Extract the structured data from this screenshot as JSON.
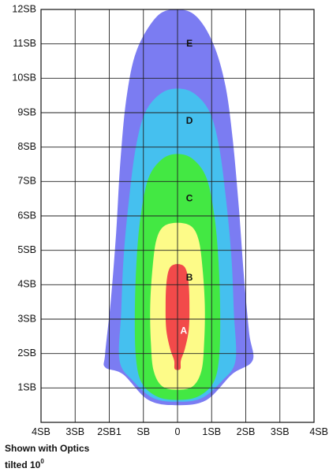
{
  "chart_data": {
    "type": "area",
    "x_ticks": [
      "4SB",
      "3SB",
      "2SB1",
      "SB",
      "0",
      "1SB",
      "2SB",
      "3SB",
      "4SB"
    ],
    "y_ticks": [
      "1SB",
      "2SB",
      "3SB",
      "4SB",
      "5SB",
      "6SB",
      "7SB",
      "8SB",
      "9SB",
      "10SB",
      "11SB",
      "12SB"
    ],
    "xlim": [
      -4,
      4
    ],
    "ylim": [
      0,
      12
    ],
    "grid": true,
    "zones": [
      {
        "name": "E",
        "color": "#7b7cf2",
        "label_pos": [
          0.35,
          11.0
        ],
        "outline": [
          [
            0,
            12.0
          ],
          [
            0.55,
            11.8
          ],
          [
            1.05,
            11.0
          ],
          [
            1.4,
            9.8
          ],
          [
            1.62,
            8.2
          ],
          [
            1.8,
            6.2
          ],
          [
            1.95,
            4.2
          ],
          [
            2.1,
            2.6
          ],
          [
            2.2,
            1.8
          ],
          [
            1.6,
            1.4
          ],
          [
            0.85,
            0.65
          ],
          [
            0,
            0.5
          ],
          [
            -0.85,
            0.65
          ],
          [
            -1.6,
            1.4
          ],
          [
            -2.12,
            1.6
          ],
          [
            -2.12,
            2.0
          ],
          [
            -1.95,
            3.6
          ],
          [
            -1.8,
            5.5
          ],
          [
            -1.68,
            7.5
          ],
          [
            -1.5,
            9.4
          ],
          [
            -1.2,
            10.8
          ],
          [
            -0.6,
            11.8
          ]
        ]
      },
      {
        "name": "D",
        "color": "#45c0ef",
        "label_pos": [
          0.35,
          8.75
        ],
        "outline": [
          [
            0,
            9.7
          ],
          [
            0.5,
            9.55
          ],
          [
            0.95,
            9.0
          ],
          [
            1.22,
            8.0
          ],
          [
            1.42,
            6.5
          ],
          [
            1.58,
            4.8
          ],
          [
            1.65,
            3.2
          ],
          [
            1.7,
            1.8
          ],
          [
            1.3,
            1.2
          ],
          [
            0.7,
            0.7
          ],
          [
            0,
            0.6
          ],
          [
            -0.7,
            0.7
          ],
          [
            -1.3,
            1.2
          ],
          [
            -1.7,
            1.8
          ],
          [
            -1.65,
            3.2
          ],
          [
            -1.58,
            4.8
          ],
          [
            -1.42,
            6.5
          ],
          [
            -1.22,
            8.0
          ],
          [
            -0.95,
            9.0
          ],
          [
            -0.5,
            9.55
          ]
        ]
      },
      {
        "name": "C",
        "color": "#43e843",
        "label_pos": [
          0.35,
          6.5
        ],
        "outline": [
          [
            0,
            7.8
          ],
          [
            0.45,
            7.65
          ],
          [
            0.85,
            7.1
          ],
          [
            1.08,
            6.0
          ],
          [
            1.2,
            4.7
          ],
          [
            1.25,
            3.2
          ],
          [
            1.22,
            1.9
          ],
          [
            1.05,
            1.15
          ],
          [
            0.6,
            0.75
          ],
          [
            0,
            0.65
          ],
          [
            -0.6,
            0.75
          ],
          [
            -1.05,
            1.15
          ],
          [
            -1.22,
            1.9
          ],
          [
            -1.25,
            3.2
          ],
          [
            -1.2,
            4.7
          ],
          [
            -1.08,
            6.0
          ],
          [
            -0.85,
            7.1
          ],
          [
            -0.45,
            7.65
          ]
        ]
      },
      {
        "name": "B",
        "color": "#fdfb88",
        "label_pos": [
          0.35,
          4.2
        ],
        "outline": [
          [
            0,
            5.8
          ],
          [
            0.4,
            5.7
          ],
          [
            0.62,
            5.3
          ],
          [
            0.73,
            4.5
          ],
          [
            0.8,
            3.4
          ],
          [
            0.78,
            2.3
          ],
          [
            0.7,
            1.5
          ],
          [
            0.45,
            1.05
          ],
          [
            0,
            0.95
          ],
          [
            -0.45,
            1.05
          ],
          [
            -0.7,
            1.5
          ],
          [
            -0.78,
            2.3
          ],
          [
            -0.8,
            3.4
          ],
          [
            -0.73,
            4.5
          ],
          [
            -0.62,
            5.3
          ],
          [
            -0.4,
            5.7
          ]
        ]
      },
      {
        "name": "A",
        "color": "#f24a4a",
        "label_pos": [
          0.18,
          2.65
        ],
        "outline": [
          [
            0,
            4.6
          ],
          [
            0.22,
            4.5
          ],
          [
            0.32,
            4.1
          ],
          [
            0.35,
            3.4
          ],
          [
            0.33,
            2.7
          ],
          [
            0.22,
            2.15
          ],
          [
            0.1,
            1.8
          ],
          [
            0.08,
            1.55
          ],
          [
            -0.08,
            1.55
          ],
          [
            -0.1,
            1.8
          ],
          [
            -0.22,
            2.15
          ],
          [
            -0.33,
            2.7
          ],
          [
            -0.35,
            3.4
          ],
          [
            -0.32,
            4.1
          ],
          [
            -0.22,
            4.5
          ]
        ]
      }
    ]
  },
  "caption": {
    "line1": "Shown with Optics",
    "line2": "tilted 10",
    "degree": "0"
  }
}
